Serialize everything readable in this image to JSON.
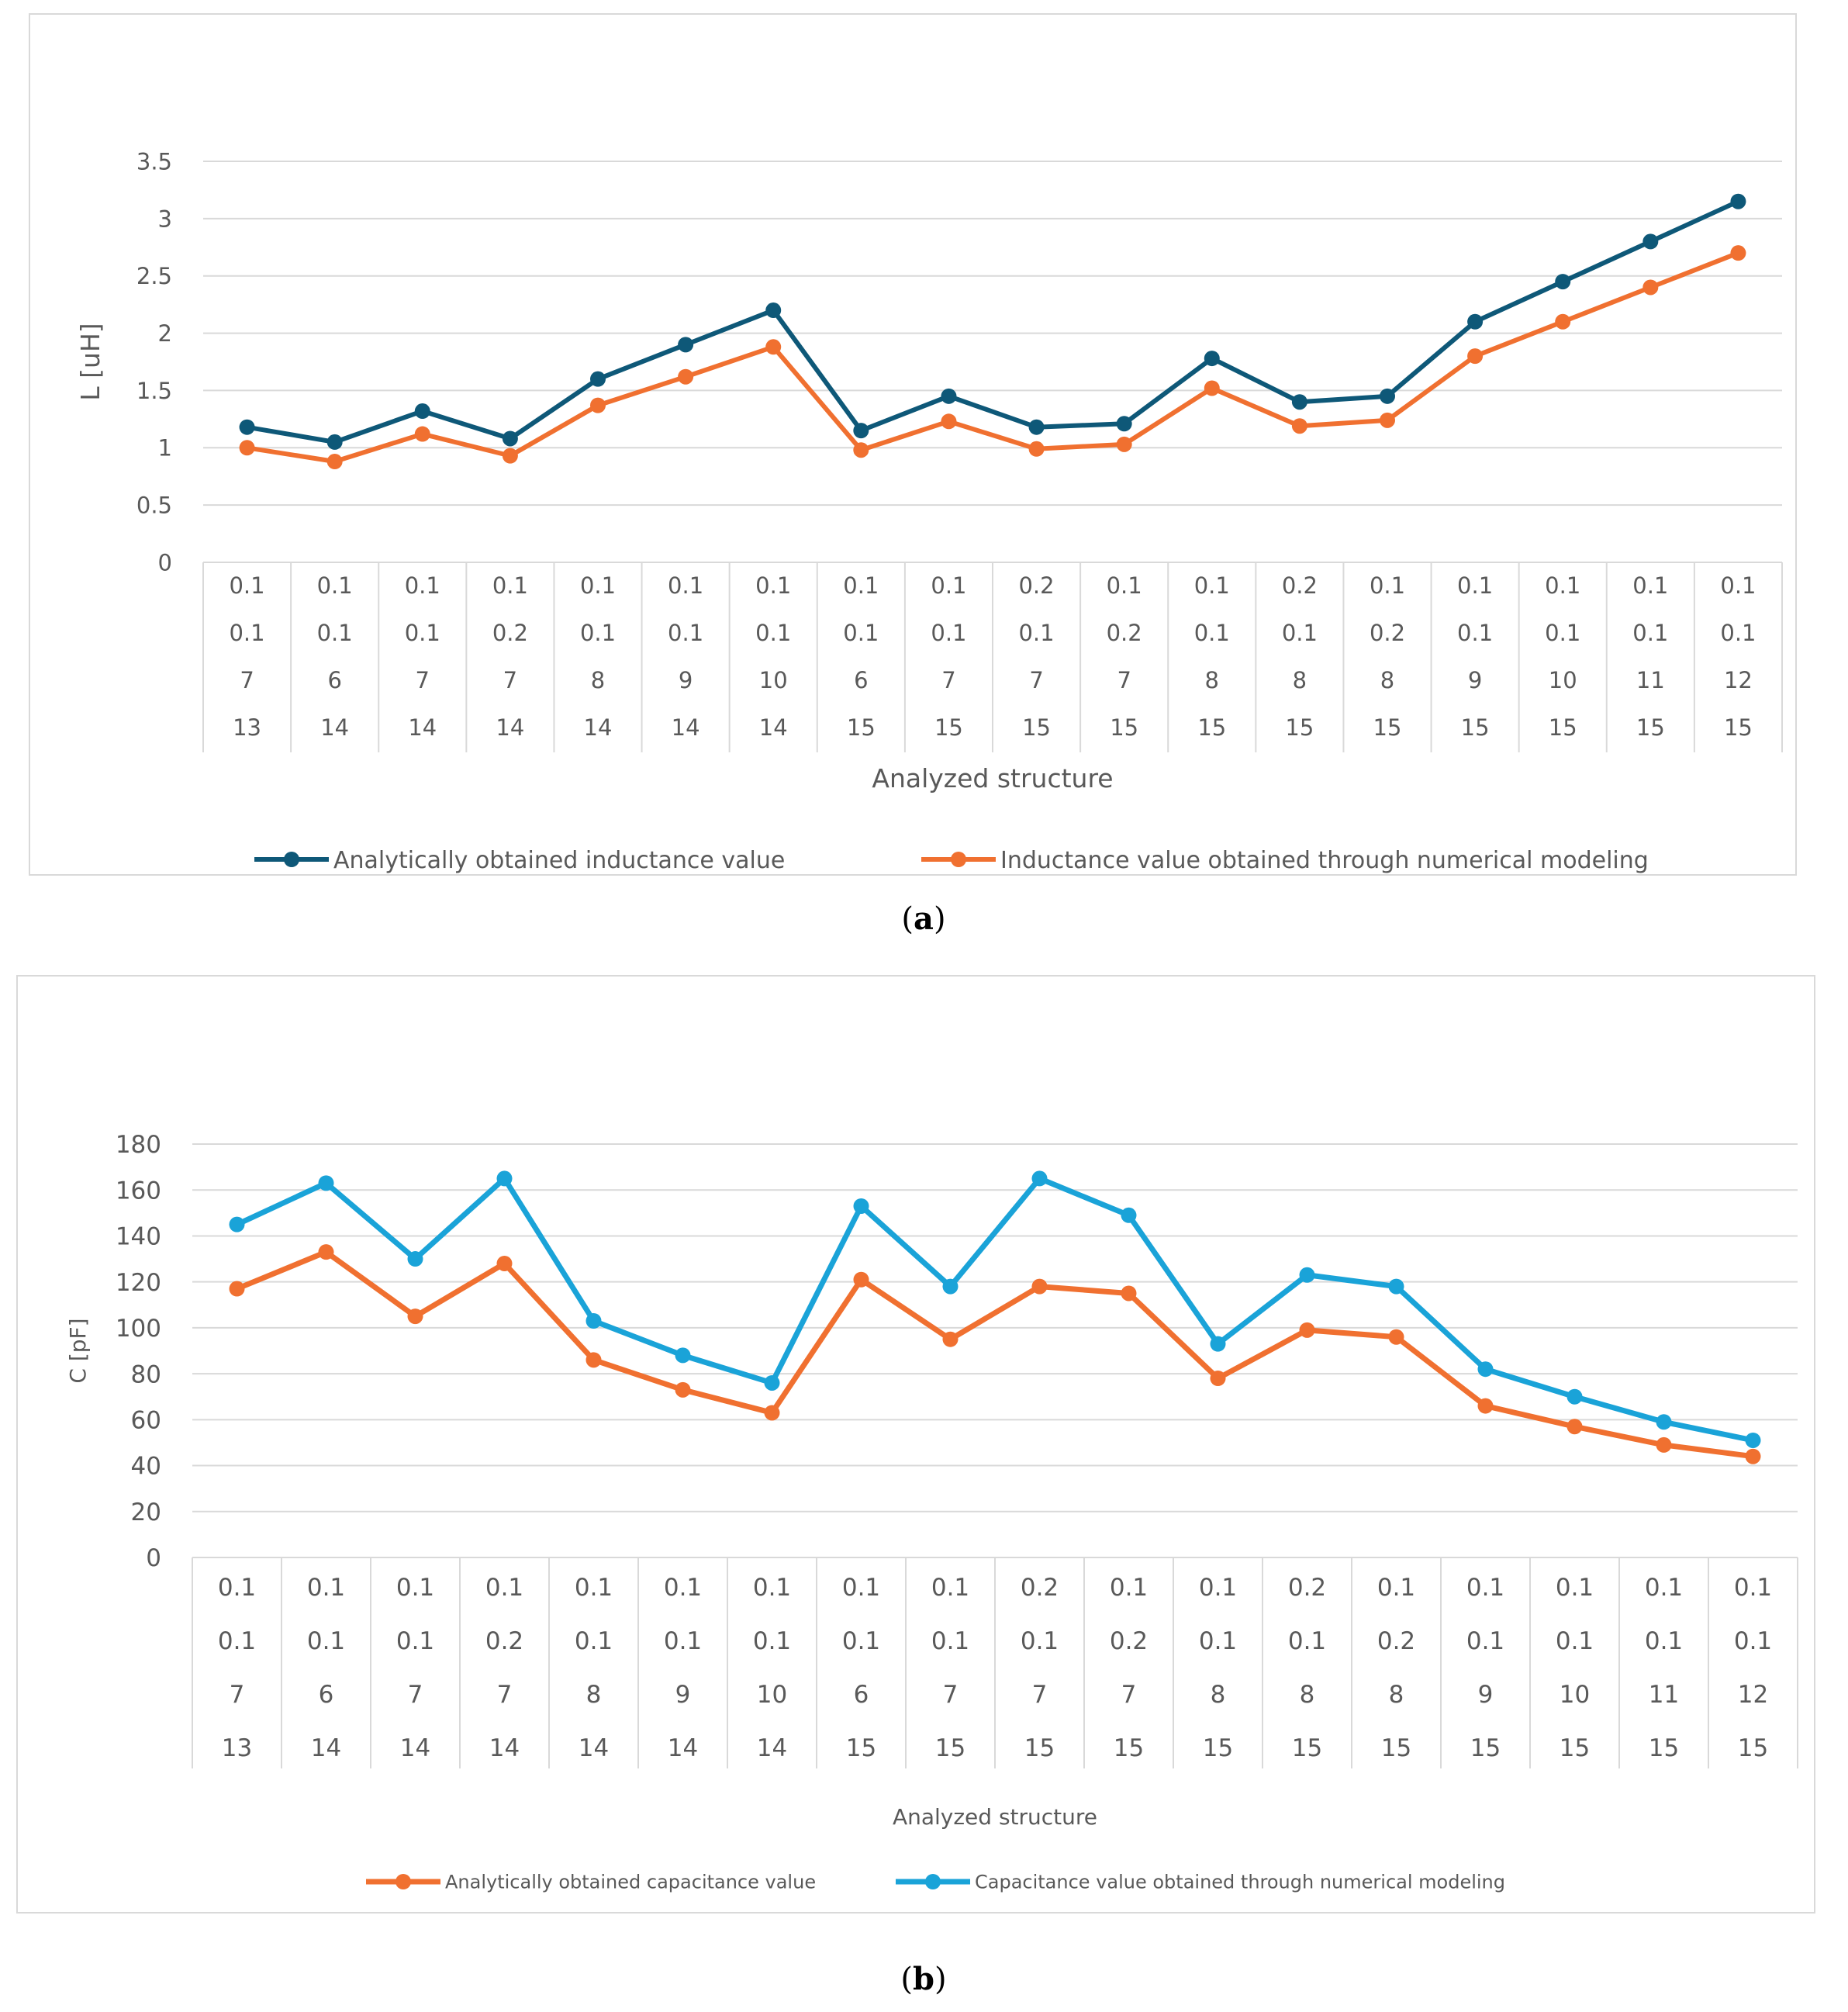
{
  "chart_data": [
    {
      "type": "line",
      "panel_label": "(a)",
      "panel_letter": "a",
      "title": "",
      "xlabel": "Analyzed structure",
      "ylabel": "L [uH]",
      "ylim": [
        0,
        3.5
      ],
      "yticks": [
        "0",
        "0.5",
        "1",
        "1.5",
        "2",
        "2.5",
        "3",
        "3.5"
      ],
      "ytick_values": [
        0,
        0.5,
        1,
        1.5,
        2,
        2.5,
        3,
        3.5
      ],
      "categories": [
        [
          "0.1",
          "0.1",
          "7",
          "13"
        ],
        [
          "0.1",
          "0.1",
          "6",
          "14"
        ],
        [
          "0.1",
          "0.1",
          "7",
          "14"
        ],
        [
          "0.1",
          "0.2",
          "7",
          "14"
        ],
        [
          "0.1",
          "0.1",
          "8",
          "14"
        ],
        [
          "0.1",
          "0.1",
          "9",
          "14"
        ],
        [
          "0.1",
          "0.1",
          "10",
          "14"
        ],
        [
          "0.1",
          "0.1",
          "6",
          "15"
        ],
        [
          "0.1",
          "0.1",
          "7",
          "15"
        ],
        [
          "0.2",
          "0.1",
          "7",
          "15"
        ],
        [
          "0.1",
          "0.2",
          "7",
          "15"
        ],
        [
          "0.1",
          "0.1",
          "8",
          "15"
        ],
        [
          "0.2",
          "0.1",
          "8",
          "15"
        ],
        [
          "0.1",
          "0.2",
          "8",
          "15"
        ],
        [
          "0.1",
          "0.1",
          "9",
          "15"
        ],
        [
          "0.1",
          "0.1",
          "10",
          "15"
        ],
        [
          "0.1",
          "0.1",
          "11",
          "15"
        ],
        [
          "0.1",
          "0.1",
          "12",
          "15"
        ]
      ],
      "series": [
        {
          "name": "Analytically obtained inductance value",
          "color": "#0e5878",
          "values": [
            1.18,
            1.05,
            1.32,
            1.08,
            1.6,
            1.9,
            2.2,
            1.15,
            1.45,
            1.18,
            1.21,
            1.78,
            1.4,
            1.45,
            2.1,
            2.45,
            2.8,
            3.15
          ]
        },
        {
          "name": "Inductance value obtained through numerical modeling",
          "color": "#f07030",
          "values": [
            1.0,
            0.88,
            1.12,
            0.93,
            1.37,
            1.62,
            1.88,
            0.98,
            1.23,
            0.99,
            1.03,
            1.52,
            1.19,
            1.24,
            1.8,
            2.1,
            2.4,
            2.7
          ]
        }
      ]
    },
    {
      "type": "line",
      "panel_label": "(b)",
      "panel_letter": "b",
      "title": "",
      "xlabel": "Analyzed structure",
      "ylabel": "C [pF]",
      "ylim": [
        0,
        180
      ],
      "yticks": [
        "0",
        "20",
        "40",
        "60",
        "80",
        "100",
        "120",
        "140",
        "160",
        "180"
      ],
      "ytick_values": [
        0,
        20,
        40,
        60,
        80,
        100,
        120,
        140,
        160,
        180
      ],
      "categories": [
        [
          "0.1",
          "0.1",
          "7",
          "13"
        ],
        [
          "0.1",
          "0.1",
          "6",
          "14"
        ],
        [
          "0.1",
          "0.1",
          "7",
          "14"
        ],
        [
          "0.1",
          "0.2",
          "7",
          "14"
        ],
        [
          "0.1",
          "0.1",
          "8",
          "14"
        ],
        [
          "0.1",
          "0.1",
          "9",
          "14"
        ],
        [
          "0.1",
          "0.1",
          "10",
          "14"
        ],
        [
          "0.1",
          "0.1",
          "6",
          "15"
        ],
        [
          "0.1",
          "0.1",
          "7",
          "15"
        ],
        [
          "0.2",
          "0.1",
          "7",
          "15"
        ],
        [
          "0.1",
          "0.2",
          "7",
          "15"
        ],
        [
          "0.1",
          "0.1",
          "8",
          "15"
        ],
        [
          "0.2",
          "0.1",
          "8",
          "15"
        ],
        [
          "0.1",
          "0.2",
          "8",
          "15"
        ],
        [
          "0.1",
          "0.1",
          "9",
          "15"
        ],
        [
          "0.1",
          "0.1",
          "10",
          "15"
        ],
        [
          "0.1",
          "0.1",
          "11",
          "15"
        ],
        [
          "0.1",
          "0.1",
          "12",
          "15"
        ]
      ],
      "series": [
        {
          "name": "Analytically obtained capacitance value",
          "color": "#f07030",
          "values": [
            117,
            133,
            105,
            128,
            86,
            73,
            63,
            121,
            95,
            118,
            115,
            78,
            99,
            96,
            66,
            57,
            49,
            44
          ]
        },
        {
          "name": "Capacitance value obtained through numerical modeling",
          "color": "#1aa3d8",
          "values": [
            145,
            163,
            130,
            165,
            103,
            88,
            76,
            153,
            118,
            165,
            149,
            93,
            123,
            118,
            82,
            70,
            59,
            51
          ]
        }
      ]
    }
  ]
}
